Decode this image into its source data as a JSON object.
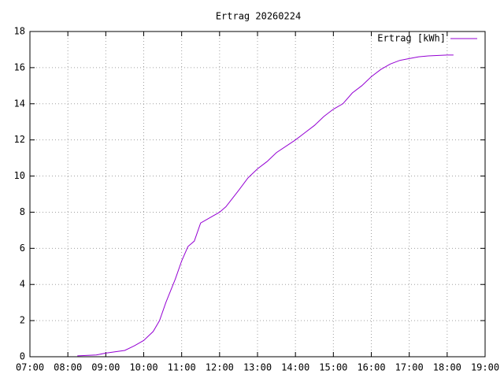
{
  "chart_data": {
    "type": "line",
    "title": "Ertrag 20260224",
    "x": [
      "08:15",
      "08:45",
      "09:00",
      "09:30",
      "09:45",
      "10:00",
      "10:15",
      "10:25",
      "10:35",
      "10:50",
      "11:00",
      "11:10",
      "11:20",
      "11:30",
      "11:45",
      "12:00",
      "12:10",
      "12:30",
      "12:45",
      "13:00",
      "13:15",
      "13:30",
      "14:00",
      "14:15",
      "14:30",
      "14:45",
      "15:00",
      "15:15",
      "15:30",
      "15:45",
      "16:00",
      "16:15",
      "16:30",
      "16:45",
      "17:00",
      "17:15",
      "17:30",
      "18:00",
      "18:10"
    ],
    "series": [
      {
        "name": "Ertrag [kWh]",
        "color": "#9400d3",
        "values": [
          0.05,
          0.1,
          0.2,
          0.35,
          0.6,
          0.9,
          1.4,
          2,
          3,
          4.3,
          5.3,
          6.1,
          6.4,
          7.4,
          7.7,
          8.0,
          8.3,
          9.2,
          9.9,
          10.4,
          10.8,
          11.3,
          12.0,
          12.4,
          12.8,
          13.3,
          13.7,
          14.0,
          14.6,
          15.0,
          15.5,
          15.9,
          16.2,
          16.4,
          16.5,
          16.6,
          16.65,
          16.7,
          16.7
        ]
      }
    ],
    "xlim": [
      "07:00",
      "19:00"
    ],
    "xticks": [
      "07:00",
      "08:00",
      "09:00",
      "10:00",
      "11:00",
      "12:00",
      "13:00",
      "14:00",
      "15:00",
      "16:00",
      "17:00",
      "18:00",
      "19:00"
    ],
    "ylim": [
      0,
      18
    ],
    "yticks": [
      0,
      2,
      4,
      6,
      8,
      10,
      12,
      14,
      16,
      18
    ],
    "grid": true,
    "legend": "top-right"
  }
}
